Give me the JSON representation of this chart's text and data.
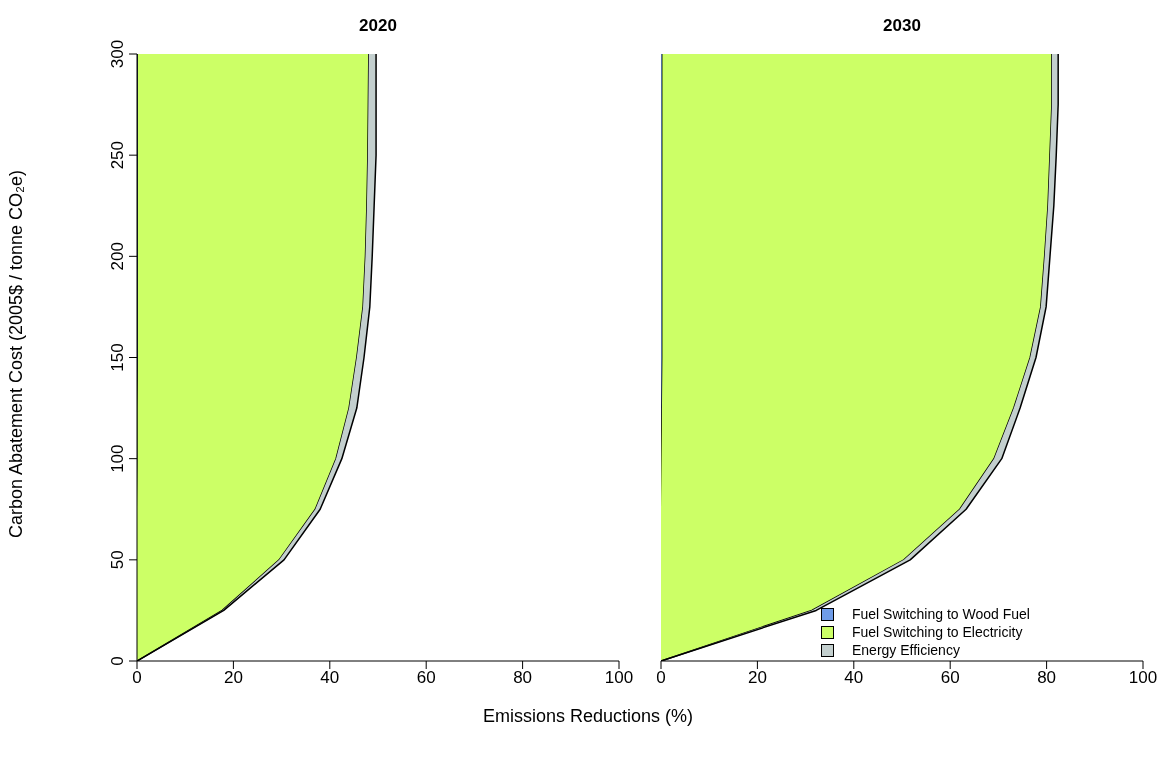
{
  "chart_data": [
    {
      "type": "area",
      "title": "2020",
      "xlabel": "Emissions Reductions (%)",
      "ylabel": "Carbon Abatement Cost (2005$ / tonne CO₂e)",
      "stacked": true,
      "orientation": "horizontal",
      "x": [
        0,
        25,
        50,
        75,
        100,
        125,
        150,
        175,
        200,
        225,
        250,
        275,
        300
      ],
      "series": [
        {
          "color": "#6f9ce8",
          "values": [
            0,
            0,
            0,
            0,
            0.1,
            0.1,
            0.2,
            0.2,
            0.2,
            0.2,
            0.2,
            0.2,
            0.2
          ]
        },
        {
          "color": "#ccff66",
          "values": [
            0,
            17.7,
            29.5,
            37.0,
            41.2,
            43.9,
            45.4,
            46.7,
            47.2,
            47.5,
            47.7,
            47.8,
            47.9
          ]
        },
        {
          "color": "#c3cfce",
          "values": [
            0,
            0.3,
            1.0,
            1.0,
            1.2,
            1.6,
            1.5,
            1.4,
            1.4,
            1.5,
            1.7,
            1.6,
            1.5
          ]
        }
      ],
      "xlim": [
        0,
        100
      ],
      "xticks": [
        0,
        20,
        40,
        60,
        80,
        100
      ],
      "ylim": [
        0,
        300
      ],
      "yticks": [
        0,
        50,
        100,
        150,
        200,
        250,
        300
      ],
      "legend": false
    },
    {
      "type": "area",
      "title": "2030",
      "stacked": true,
      "orientation": "horizontal",
      "x": [
        0,
        25,
        50,
        75,
        100,
        125,
        150,
        175,
        200,
        225,
        250,
        275,
        300
      ],
      "series": [
        {
          "name": "Fuel Switching to Wood Fuel",
          "color": "#6f9ce8",
          "values": [
            0,
            0,
            0,
            0,
            0.1,
            0.2,
            0.3,
            0.3,
            0.3,
            0.3,
            0.3,
            0.3,
            0.3
          ]
        },
        {
          "name": "Fuel Switching to Electricity",
          "color": "#ccff66",
          "values": [
            0,
            31.3,
            50.4,
            62.0,
            69.0,
            73.0,
            76.3,
            78.5,
            79.3,
            80.0,
            80.4,
            80.8,
            80.8
          ]
        },
        {
          "name": "Energy Efficiency",
          "color": "#c3cfce",
          "values": [
            0,
            0.9,
            1.3,
            1.3,
            1.6,
            1.3,
            1.2,
            1.1,
            1.1,
            1.2,
            1.3,
            1.3,
            1.3
          ]
        }
      ],
      "xlim": [
        0,
        100
      ],
      "xticks": [
        0,
        20,
        40,
        60,
        80,
        100
      ],
      "ylim": [
        0,
        300
      ],
      "tick_labels": "x",
      "legend": "bottom right"
    }
  ]
}
